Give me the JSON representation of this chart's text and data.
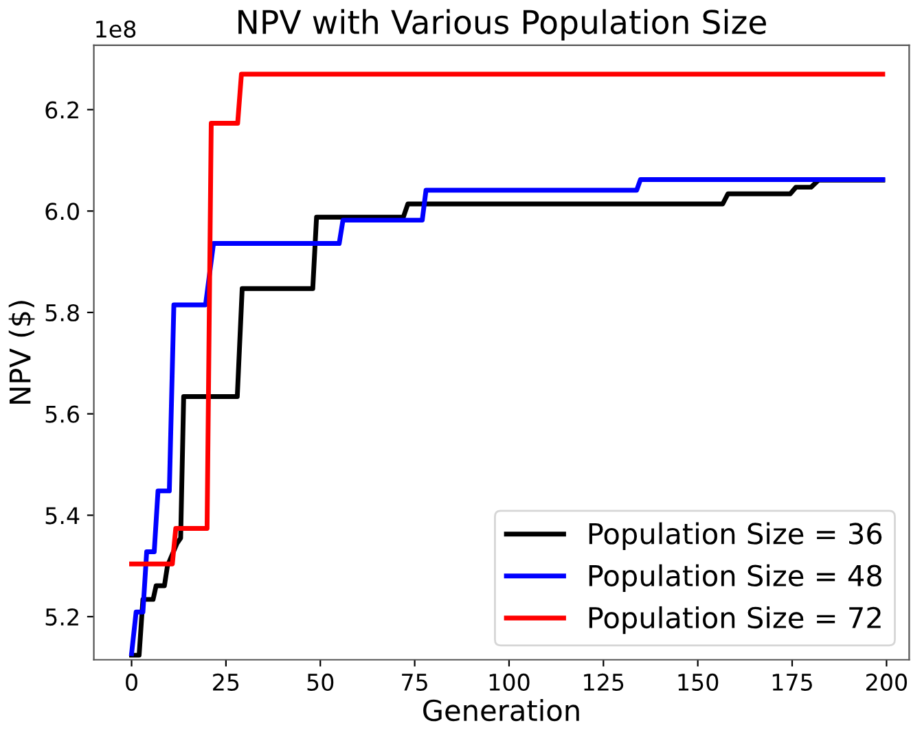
{
  "chart_data": {
    "type": "line",
    "title": "NPV with Various Population Size",
    "xlabel": "Generation",
    "ylabel": "NPV ($)",
    "xlim": [
      -10,
      206
    ],
    "xticks": [
      0,
      25,
      50,
      75,
      100,
      125,
      150,
      175,
      200
    ],
    "ylim": [
      5.115,
      6.327
    ],
    "yticks": [
      {
        "value": 5.2,
        "label": "5.2"
      },
      {
        "value": 5.4,
        "label": "5.4"
      },
      {
        "value": 5.6,
        "label": "5.6"
      },
      {
        "value": 5.8,
        "label": "5.8"
      },
      {
        "value": 6.0,
        "label": "6.0"
      },
      {
        "value": 6.2,
        "label": "6.2"
      }
    ],
    "annotations": [
      "1e8"
    ],
    "legend": "bottom right",
    "grid": false,
    "marker": "none",
    "line_style": "solid",
    "series": [
      {
        "name": "Population Size = 36",
        "color": "#000000",
        "x": [
          0,
          2,
          3,
          5.7,
          6.5,
          8.7,
          9.5,
          12,
          13,
          13.8,
          28,
          29.3,
          48,
          49,
          72,
          73.2,
          156.6,
          158,
          174.5,
          176,
          180,
          182,
          199
        ],
        "values": [
          5.124,
          5.124,
          5.234,
          5.234,
          5.261,
          5.261,
          5.3,
          5.344,
          5.355,
          5.634,
          5.634,
          5.847,
          5.847,
          5.988,
          5.988,
          6.014,
          6.014,
          6.034,
          6.034,
          6.047,
          6.047,
          6.061,
          6.061
        ]
      },
      {
        "name": "Population Size = 48",
        "color": "#0000ff",
        "x": [
          0,
          1.2,
          3,
          4,
          6,
          7,
          10,
          11.2,
          19.6,
          21.7,
          55,
          56,
          77,
          78,
          133.8,
          134.8,
          199
        ],
        "values": [
          5.127,
          5.209,
          5.209,
          5.328,
          5.328,
          5.448,
          5.448,
          5.815,
          5.815,
          5.936,
          5.936,
          5.982,
          5.982,
          6.041,
          6.041,
          6.062,
          6.062
        ]
      },
      {
        "name": "Population Size = 72",
        "color": "#ff0000",
        "x": [
          0,
          10.8,
          11.7,
          20,
          21.1,
          28.1,
          29.1,
          199
        ],
        "values": [
          5.304,
          5.304,
          5.374,
          5.374,
          6.173,
          6.173,
          6.27,
          6.27
        ]
      }
    ]
  }
}
